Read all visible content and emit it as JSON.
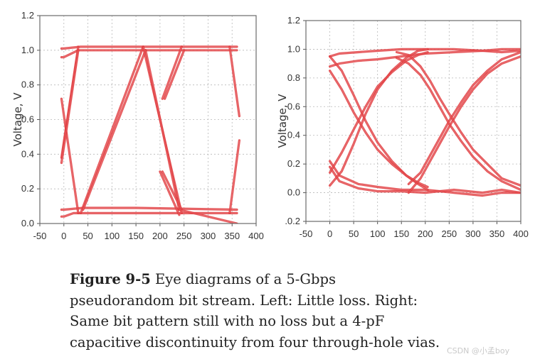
{
  "chart_data": [
    {
      "type": "line",
      "title": "",
      "xlabel": "",
      "ylabel": "Voltage, V",
      "xlim": [
        -50,
        400
      ],
      "ylim": [
        0.0,
        1.2
      ],
      "x_ticks": [
        "-50",
        "0",
        "50",
        "100",
        "150",
        "200",
        "250",
        "300",
        "350",
        "400"
      ],
      "y_ticks": [
        "0.0",
        "0.2",
        "0.4",
        "0.6",
        "0.8",
        "1.0",
        "1.2"
      ],
      "grid": true,
      "line_color": "#e0383c",
      "series": [
        {
          "x": [
            -5,
            0,
            20,
            40,
            360
          ],
          "y": [
            0.04,
            0.04,
            0.06,
            0.06,
            0.06
          ]
        },
        {
          "x": [
            -5,
            0,
            40,
            150,
            360
          ],
          "y": [
            0.08,
            0.08,
            0.09,
            0.09,
            0.08
          ]
        },
        {
          "x": [
            -5,
            0,
            30,
            360
          ],
          "y": [
            0.96,
            0.96,
            1.0,
            1.0
          ]
        },
        {
          "x": [
            -5,
            0,
            35,
            360
          ],
          "y": [
            1.01,
            1.01,
            1.02,
            1.02
          ]
        },
        {
          "x": [
            35,
            165
          ],
          "y": [
            0.06,
            1.02
          ]
        },
        {
          "x": [
            40,
            170
          ],
          "y": [
            0.08,
            1.0
          ]
        },
        {
          "x": [
            165,
            245
          ],
          "y": [
            1.02,
            0.06
          ]
        },
        {
          "x": [
            170,
            240
          ],
          "y": [
            1.0,
            0.08
          ]
        },
        {
          "x": [
            200,
            240
          ],
          "y": [
            0.3,
            0.05
          ]
        },
        {
          "x": [
            205,
            245
          ],
          "y": [
            0.3,
            0.08
          ]
        },
        {
          "x": [
            240,
            360
          ],
          "y": [
            0.08,
            0.0
          ]
        },
        {
          "x": [
            205,
            245
          ],
          "y": [
            0.72,
            1.02
          ]
        },
        {
          "x": [
            210,
            250
          ],
          "y": [
            0.72,
            1.0
          ]
        },
        {
          "x": [
            -5,
            30
          ],
          "y": [
            0.72,
            0.06
          ]
        },
        {
          "x": [
            -5,
            30
          ],
          "y": [
            0.38,
            1.02
          ]
        },
        {
          "x": [
            -5,
            30
          ],
          "y": [
            0.35,
            1.0
          ]
        },
        {
          "x": [
            345,
            365
          ],
          "y": [
            1.02,
            0.62
          ]
        },
        {
          "x": [
            345,
            365
          ],
          "y": [
            0.06,
            0.48
          ]
        }
      ]
    },
    {
      "type": "line",
      "title": "",
      "xlabel": "",
      "ylabel": "Voltage, V",
      "xlim": [
        -50,
        400
      ],
      "ylim": [
        -0.2,
        1.2
      ],
      "x_ticks": [
        "-50",
        "0",
        "50",
        "100",
        "150",
        "200",
        "250",
        "300",
        "350",
        "400"
      ],
      "y_ticks": [
        ".0.2",
        "0.0",
        "0.2",
        "0.4",
        "0.6",
        "0.8",
        "1.0",
        "1.2"
      ],
      "grid": true,
      "line_color": "#e0383c",
      "series": [
        {
          "x": [
            0,
            20,
            60,
            100,
            150,
            200,
            260,
            320,
            360,
            400
          ],
          "y": [
            0.22,
            0.12,
            0.06,
            0.04,
            0.02,
            0.02,
            0.0,
            -0.02,
            0.0,
            0.0
          ]
        },
        {
          "x": [
            0,
            20,
            60,
            100,
            150,
            200,
            260,
            320,
            360,
            400
          ],
          "y": [
            0.18,
            0.08,
            0.03,
            0.01,
            0.01,
            0.0,
            0.02,
            0.0,
            0.02,
            0.0
          ]
        },
        {
          "x": [
            0,
            20,
            60,
            100,
            150,
            200,
            260,
            320,
            360,
            400
          ],
          "y": [
            0.95,
            0.97,
            0.98,
            0.99,
            1.0,
            1.0,
            1.0,
            0.99,
            0.98,
            0.99
          ]
        },
        {
          "x": [
            0,
            20,
            60,
            100,
            150,
            200,
            260,
            320,
            360,
            400
          ],
          "y": [
            0.88,
            0.9,
            0.92,
            0.93,
            0.95,
            0.97,
            0.98,
            0.99,
            1.0,
            1.0
          ]
        },
        {
          "x": [
            0,
            25,
            50,
            75,
            100,
            130,
            160,
            185,
            205
          ],
          "y": [
            0.95,
            0.85,
            0.68,
            0.5,
            0.35,
            0.22,
            0.12,
            0.06,
            0.02
          ]
        },
        {
          "x": [
            0,
            25,
            50,
            75,
            100,
            130,
            160,
            185,
            205
          ],
          "y": [
            0.85,
            0.72,
            0.56,
            0.42,
            0.3,
            0.2,
            0.12,
            0.07,
            0.04
          ]
        },
        {
          "x": [
            0,
            25,
            50,
            75,
            100,
            130,
            160,
            185,
            205
          ],
          "y": [
            0.05,
            0.15,
            0.34,
            0.55,
            0.72,
            0.85,
            0.94,
            0.99,
            1.0
          ]
        },
        {
          "x": [
            0,
            25,
            50,
            75,
            100,
            130,
            160,
            185,
            205
          ],
          "y": [
            0.14,
            0.28,
            0.44,
            0.6,
            0.74,
            0.84,
            0.92,
            0.96,
            0.98
          ]
        },
        {
          "x": [
            165,
            190,
            210,
            230,
            250,
            275,
            300,
            330,
            360,
            400
          ],
          "y": [
            0.0,
            0.1,
            0.22,
            0.34,
            0.46,
            0.6,
            0.72,
            0.83,
            0.9,
            0.95
          ]
        },
        {
          "x": [
            165,
            190,
            210,
            230,
            250,
            275,
            300,
            330,
            360,
            400
          ],
          "y": [
            0.06,
            0.14,
            0.26,
            0.38,
            0.5,
            0.63,
            0.75,
            0.85,
            0.93,
            0.98
          ]
        },
        {
          "x": [
            140,
            165,
            190,
            210,
            230,
            250,
            275,
            300,
            330,
            360,
            400
          ],
          "y": [
            0.98,
            0.96,
            0.88,
            0.78,
            0.66,
            0.55,
            0.42,
            0.3,
            0.2,
            0.1,
            0.05
          ]
        },
        {
          "x": [
            140,
            165,
            190,
            210,
            230,
            250,
            275,
            300,
            330,
            360,
            400
          ],
          "y": [
            0.94,
            0.9,
            0.82,
            0.72,
            0.6,
            0.48,
            0.36,
            0.25,
            0.15,
            0.08,
            0.02
          ]
        }
      ]
    }
  ],
  "caption": {
    "figure_label": "Figure 9-5",
    "line1": " Eye diagrams of a 5-Gbps",
    "line2": "pseudorandom bit stream. Left: Little loss. Right:",
    "line3": "Same bit pattern still with no loss but a 4-pF",
    "line4": "capacitive discontinuity from four through-hole vias."
  },
  "watermark": "CSDN @小孟boy"
}
